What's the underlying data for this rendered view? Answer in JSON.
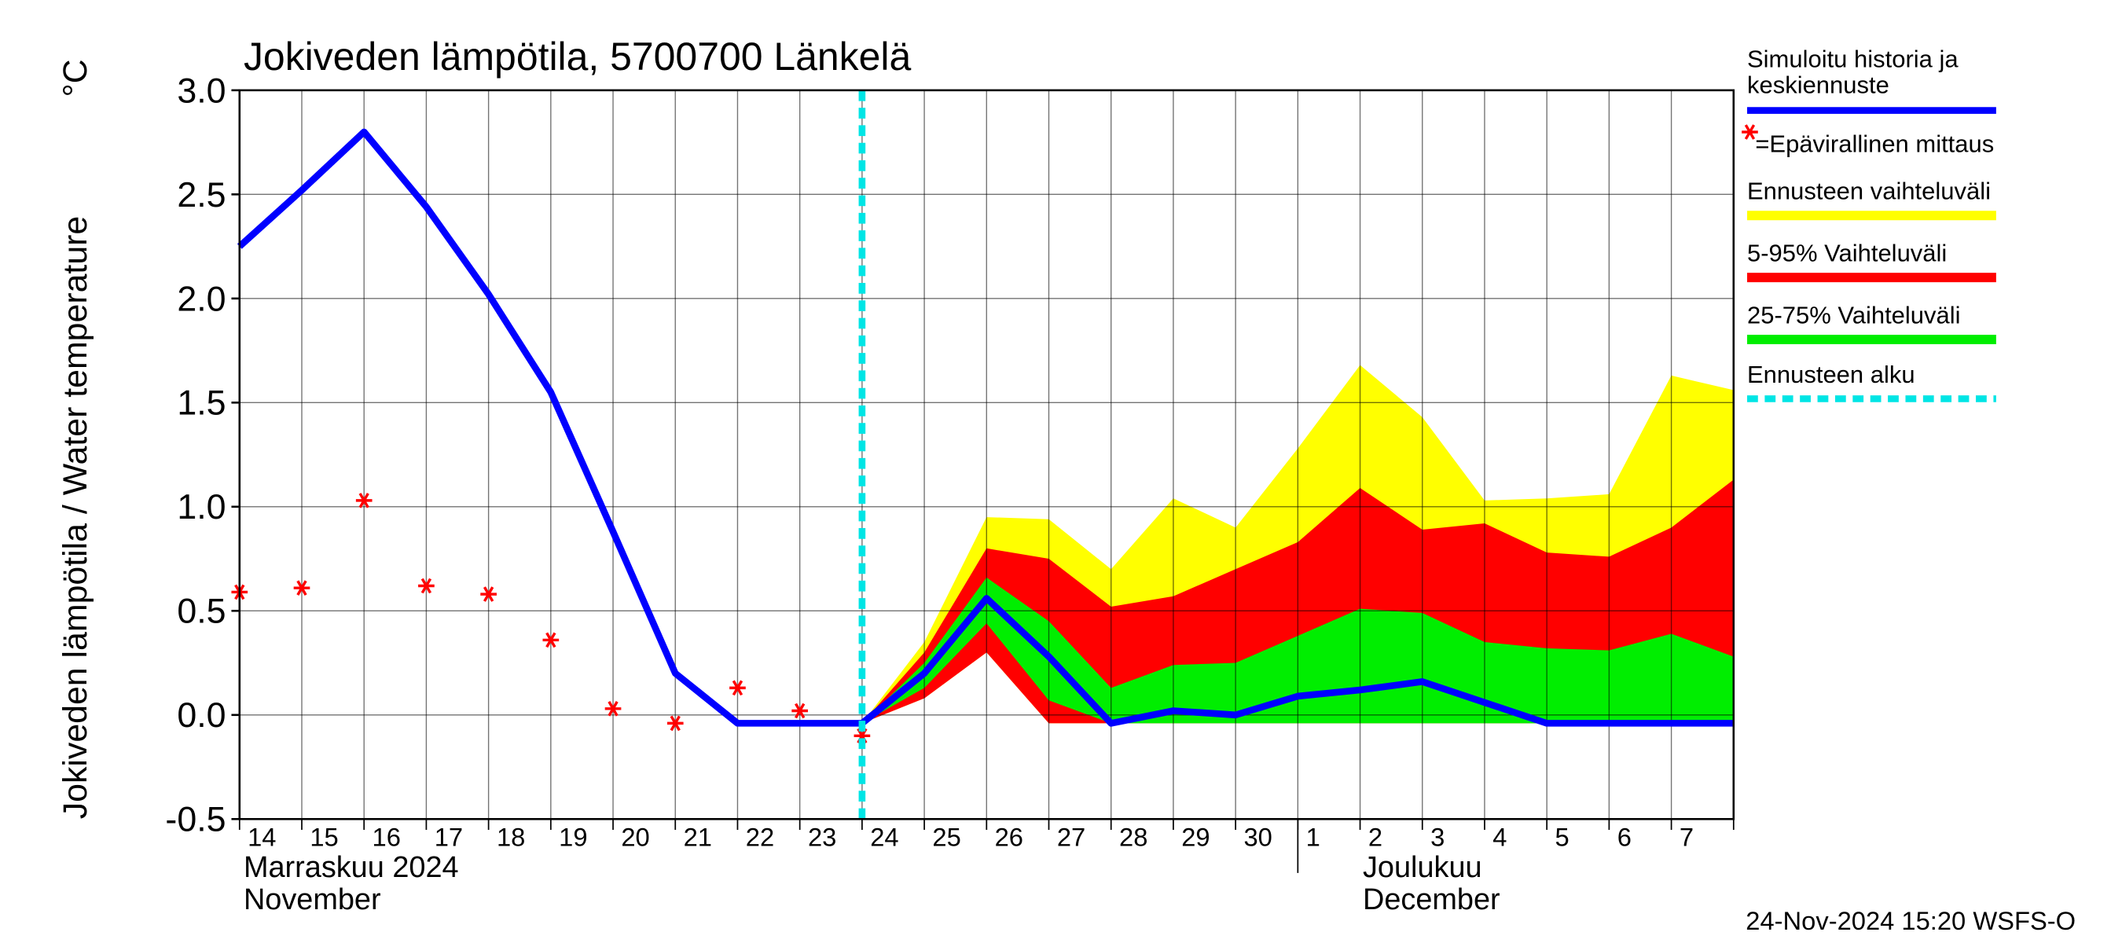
{
  "chart_data": {
    "type": "line",
    "title": "Jokiveden lämpötila, 5700700 Länkelä",
    "y_label": "Jokiveden lämpötila / Water temperature",
    "y_unit": "°C",
    "footer": "24-Nov-2024 15:20 WSFS-O",
    "categories": [
      "14",
      "15",
      "16",
      "17",
      "18",
      "19",
      "20",
      "21",
      "22",
      "23",
      "24",
      "25",
      "26",
      "27",
      "28",
      "29",
      "30",
      "1",
      "2",
      "3",
      "4",
      "5",
      "6",
      "7",
      null
    ],
    "month_labels": [
      [
        "Marraskuu 2024",
        "November"
      ],
      [
        "Joulukuu",
        "December"
      ]
    ],
    "ylim": [
      -0.5,
      3.0
    ],
    "yticks": [
      -0.5,
      {
        "value": 0,
        "label": "0.0"
      },
      0.5,
      {
        "value": 1,
        "label": "1.0"
      },
      1.5,
      {
        "value": 2,
        "label": "2.0"
      },
      2.5,
      {
        "value": 3,
        "label": "3.0"
      }
    ],
    "grid": true,
    "forecast_start": "24",
    "bands": [
      {
        "name": "Ennusteen vaihteluväli",
        "color": "#ffff00",
        "upper": [
          null,
          null,
          null,
          null,
          null,
          null,
          null,
          null,
          null,
          null,
          -0.04,
          0.35,
          0.95,
          0.94,
          0.7,
          1.04,
          0.9,
          1.28,
          1.68,
          1.43,
          1.03,
          1.04,
          1.06,
          1.63,
          1.56
        ],
        "lower": [
          null,
          null,
          null,
          null,
          null,
          null,
          null,
          null,
          null,
          null,
          -0.04,
          0.08,
          0.3,
          -0.04,
          -0.04,
          -0.04,
          -0.04,
          -0.04,
          -0.04,
          -0.04,
          -0.04,
          -0.04,
          -0.04,
          -0.04,
          -0.04
        ]
      },
      {
        "name": "5-95% Vaihteluväli",
        "color": "#ff0000",
        "upper": [
          null,
          null,
          null,
          null,
          null,
          null,
          null,
          null,
          null,
          null,
          -0.04,
          0.3,
          0.8,
          0.75,
          0.52,
          0.57,
          0.7,
          0.83,
          1.09,
          0.89,
          0.92,
          0.78,
          0.76,
          0.9,
          1.13
        ],
        "lower": [
          null,
          null,
          null,
          null,
          null,
          null,
          null,
          null,
          null,
          null,
          -0.04,
          0.08,
          0.3,
          -0.04,
          -0.04,
          -0.04,
          -0.04,
          -0.04,
          -0.04,
          -0.04,
          -0.04,
          -0.04,
          -0.04,
          -0.04,
          -0.04
        ]
      },
      {
        "name": "25-75% Vaihteluväli",
        "color": "#00ee00",
        "upper": [
          null,
          null,
          null,
          null,
          null,
          null,
          null,
          null,
          null,
          null,
          -0.04,
          0.25,
          0.66,
          0.45,
          0.13,
          0.24,
          0.25,
          0.38,
          0.51,
          0.49,
          0.35,
          0.32,
          0.31,
          0.39,
          0.28
        ],
        "lower": [
          null,
          null,
          null,
          null,
          null,
          null,
          null,
          null,
          null,
          null,
          -0.04,
          0.13,
          0.44,
          0.07,
          -0.04,
          -0.04,
          -0.04,
          -0.04,
          -0.04,
          -0.04,
          -0.04,
          -0.04,
          -0.04,
          -0.04,
          -0.04
        ]
      }
    ],
    "series": [
      {
        "name": [
          "Simuloitu historia ja",
          "keskiennuste"
        ],
        "color": "#0000ff",
        "values": [
          2.25,
          2.52,
          2.8,
          2.44,
          2.02,
          1.55,
          0.88,
          0.2,
          -0.04,
          -0.04,
          -0.04,
          0.2,
          0.56,
          0.28,
          -0.04,
          0.02,
          0.0,
          0.09,
          0.12,
          0.16,
          0.06,
          -0.04,
          -0.04,
          -0.04,
          -0.04
        ]
      },
      {
        "name": "=Epävirallinen mittaus",
        "color": "#ff0000",
        "values": [
          0.59,
          0.61,
          1.03,
          0.62,
          0.58,
          0.36,
          0.03,
          -0.04,
          0.13,
          0.02,
          -0.1,
          null,
          null,
          null,
          null,
          null,
          null,
          null,
          null,
          null,
          null,
          null,
          null,
          null,
          null
        ]
      }
    ],
    "forecast_line": {
      "name": "Ennusteen alku",
      "color": "#00e5e5"
    }
  }
}
